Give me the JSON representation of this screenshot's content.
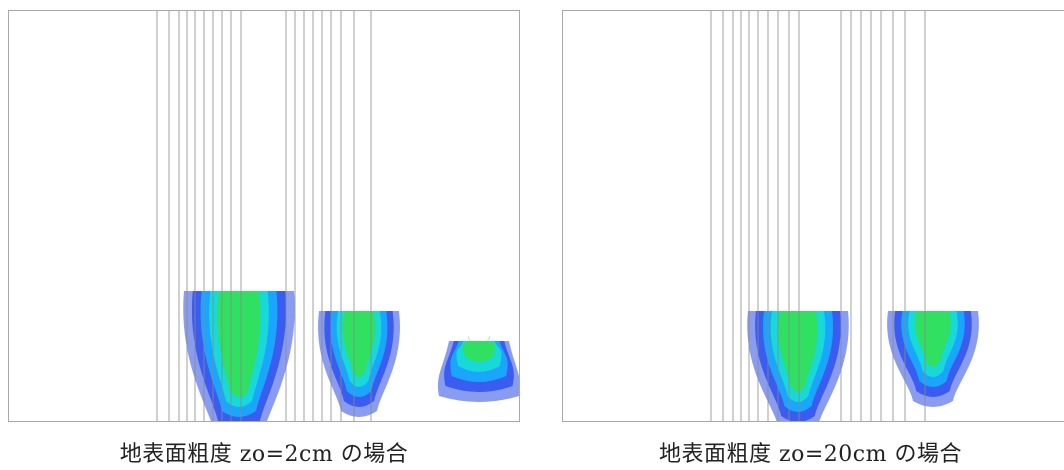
{
  "captions": {
    "left": "地表面粗度 zo=2cm の場合",
    "right": "地表面粗度 zo=20cm の場合"
  },
  "colors": {
    "level1": "#c6d0f5",
    "level2": "#8a9cf0",
    "level3": "#3a5cf0",
    "level4": "#1aa6ff",
    "level5": "#18d8d8",
    "level6": "#30e060",
    "level7": "#c4ee22",
    "level8": "#ffd400",
    "level9": "#ff5a10",
    "level10": "#e80000",
    "gridline": "#8a8a8a",
    "frame": "#a8a8a8"
  }
}
